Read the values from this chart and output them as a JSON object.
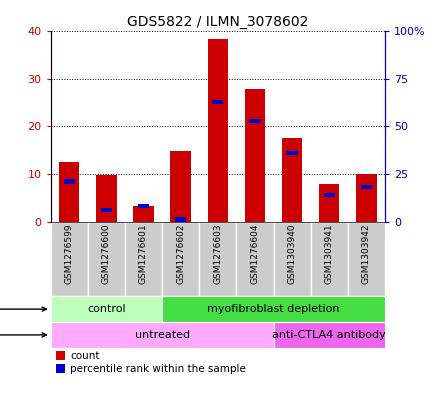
{
  "title": "GDS5822 / ILMN_3078602",
  "samples": [
    "GSM1276599",
    "GSM1276600",
    "GSM1276601",
    "GSM1276602",
    "GSM1276603",
    "GSM1276604",
    "GSM1303940",
    "GSM1303941",
    "GSM1303942"
  ],
  "counts": [
    12.5,
    9.7,
    3.2,
    14.8,
    38.5,
    27.8,
    17.5,
    8.0,
    10.0
  ],
  "percentile_ranks": [
    21,
    6,
    8,
    1,
    63,
    53,
    36,
    14,
    18
  ],
  "ylim_left": [
    0,
    40
  ],
  "ylim_right": [
    0,
    100
  ],
  "yticks_left": [
    0,
    10,
    20,
    30,
    40
  ],
  "yticks_right": [
    0,
    25,
    50,
    75,
    100
  ],
  "ytick_labels_left": [
    "0",
    "10",
    "20",
    "30",
    "40"
  ],
  "ytick_labels_right": [
    "0",
    "25",
    "50",
    "75",
    "100%"
  ],
  "bar_color": "#cc0000",
  "percentile_color": "#0000cc",
  "bar_width": 0.55,
  "protocol_groups": [
    {
      "label": "control",
      "start": 0,
      "end": 3,
      "color": "#bbffbb"
    },
    {
      "label": "myofibroblast depletion",
      "start": 3,
      "end": 9,
      "color": "#44dd44"
    }
  ],
  "agent_groups": [
    {
      "label": "untreated",
      "start": 0,
      "end": 6,
      "color": "#ffaaff"
    },
    {
      "label": "anti-CTLA4 antibody",
      "start": 6,
      "end": 9,
      "color": "#ee66ee"
    }
  ],
  "legend_count_label": "count",
  "legend_pct_label": "percentile rank within the sample",
  "left_axis_color": "#cc0000",
  "right_axis_color": "#0000cc",
  "grid_color": "#000000",
  "xlabels_bg": "#cccccc",
  "plot_bg": "#ffffff"
}
